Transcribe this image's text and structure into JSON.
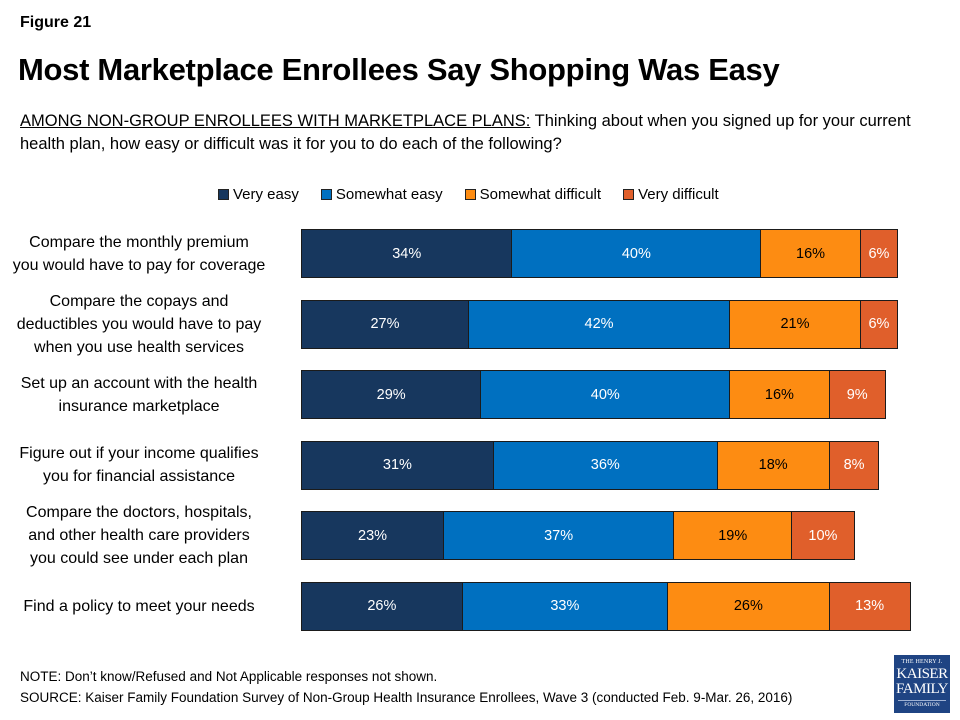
{
  "figure_label": "Figure 21",
  "chart_data": {
    "type": "bar",
    "orientation": "horizontal-stacked",
    "title": "Most Marketplace Enrollees Say Shopping Was Easy",
    "subtitle_lead": "AMONG NON-GROUP ENROLLEES WITH MARKETPLACE PLANS:",
    "subtitle_text": " Thinking about when you signed up for your current health plan, how easy or difficult was it for you to do each of the following?",
    "legend_position": "top",
    "xlabel": "",
    "ylabel": "",
    "categories": [
      "Compare the monthly premium you would have to pay for coverage",
      "Compare the copays and deductibles you would have to pay when you use health services",
      "Set up an account with the health insurance marketplace",
      "Figure out if your income qualifies you for financial assistance",
      "Compare the doctors, hospitals, and other health care providers you could see under each plan",
      "Find a policy to meet your needs"
    ],
    "series": [
      {
        "name": "Very easy",
        "color": "#17375e",
        "label_color": "#ffffff",
        "values": [
          34,
          27,
          29,
          31,
          23,
          26
        ]
      },
      {
        "name": "Somewhat easy",
        "color": "#0070c0",
        "label_color": "#ffffff",
        "values": [
          40,
          42,
          40,
          36,
          37,
          33
        ]
      },
      {
        "name": "Somewhat difficult",
        "color": "#fd8c12",
        "label_color": "#000000",
        "values": [
          16,
          21,
          16,
          18,
          19,
          26
        ]
      },
      {
        "name": "Very difficult",
        "color": "#e05f2b",
        "label_color": "#ffffff",
        "values": [
          6,
          6,
          9,
          8,
          10,
          13
        ]
      }
    ],
    "value_suffix": "%"
  },
  "footer": {
    "note": "NOTE: Don’t know/Refused and Not Applicable responses not shown.",
    "source": "SOURCE: Kaiser Family Foundation Survey of Non-Group Health Insurance Enrollees, Wave 3 (conducted Feb. 9-Mar. 26, 2016)"
  },
  "logo": {
    "line1": "THE HENRY J.",
    "line2": "KAISER",
    "line3": "FAMILY",
    "line4": "FOUNDATION"
  }
}
